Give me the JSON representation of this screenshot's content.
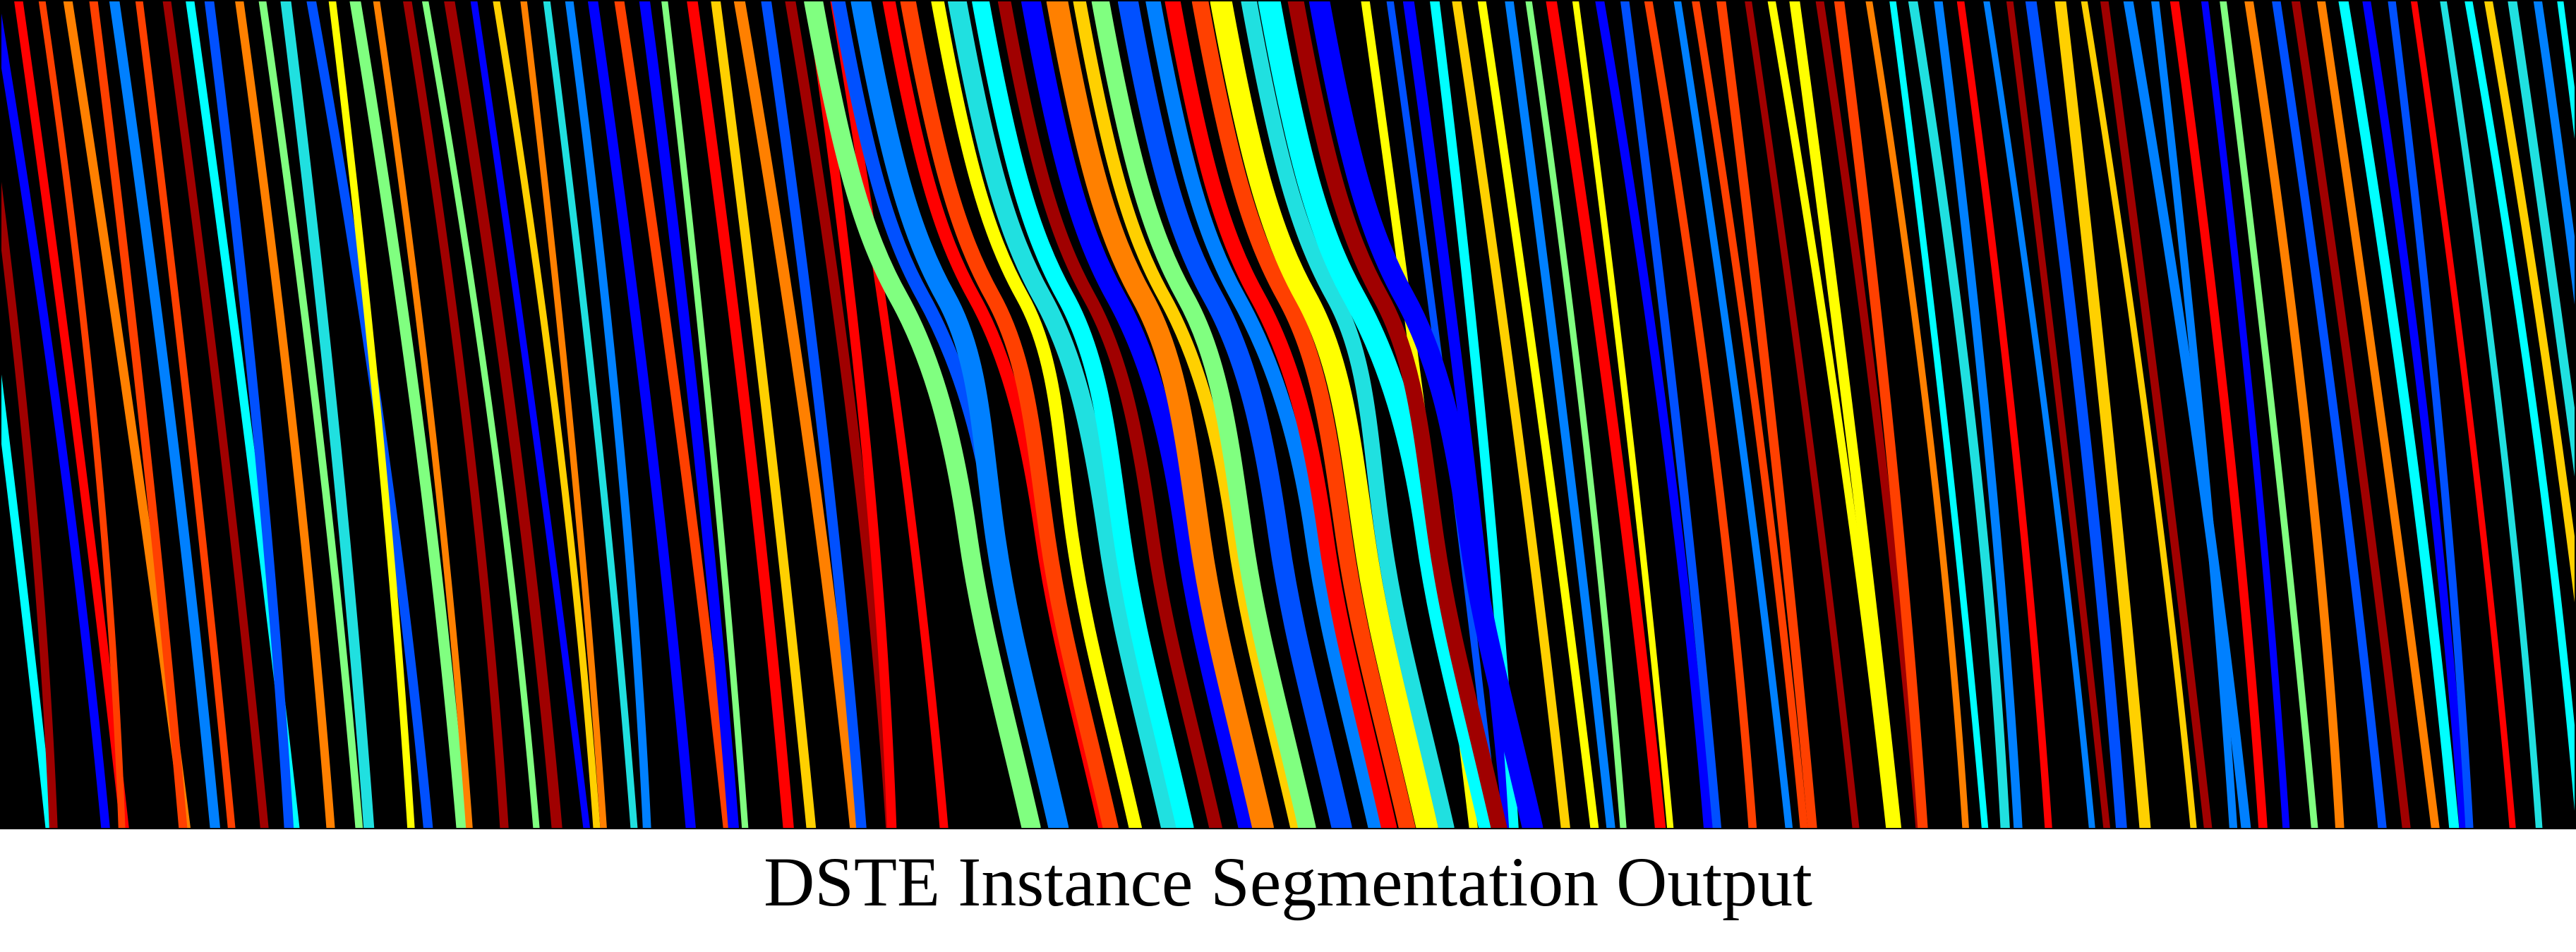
{
  "figure": {
    "caption": "DSTE Instance Segmentation Output",
    "background_color": "#000000",
    "palette": [
      "#0000ff",
      "#0080ff",
      "#00ffff",
      "#80ff80",
      "#ffff00",
      "#ff8000",
      "#ff0000",
      "#a00000",
      "#0050ff",
      "#20e0e0",
      "#ffd000",
      "#ff4000"
    ]
  }
}
